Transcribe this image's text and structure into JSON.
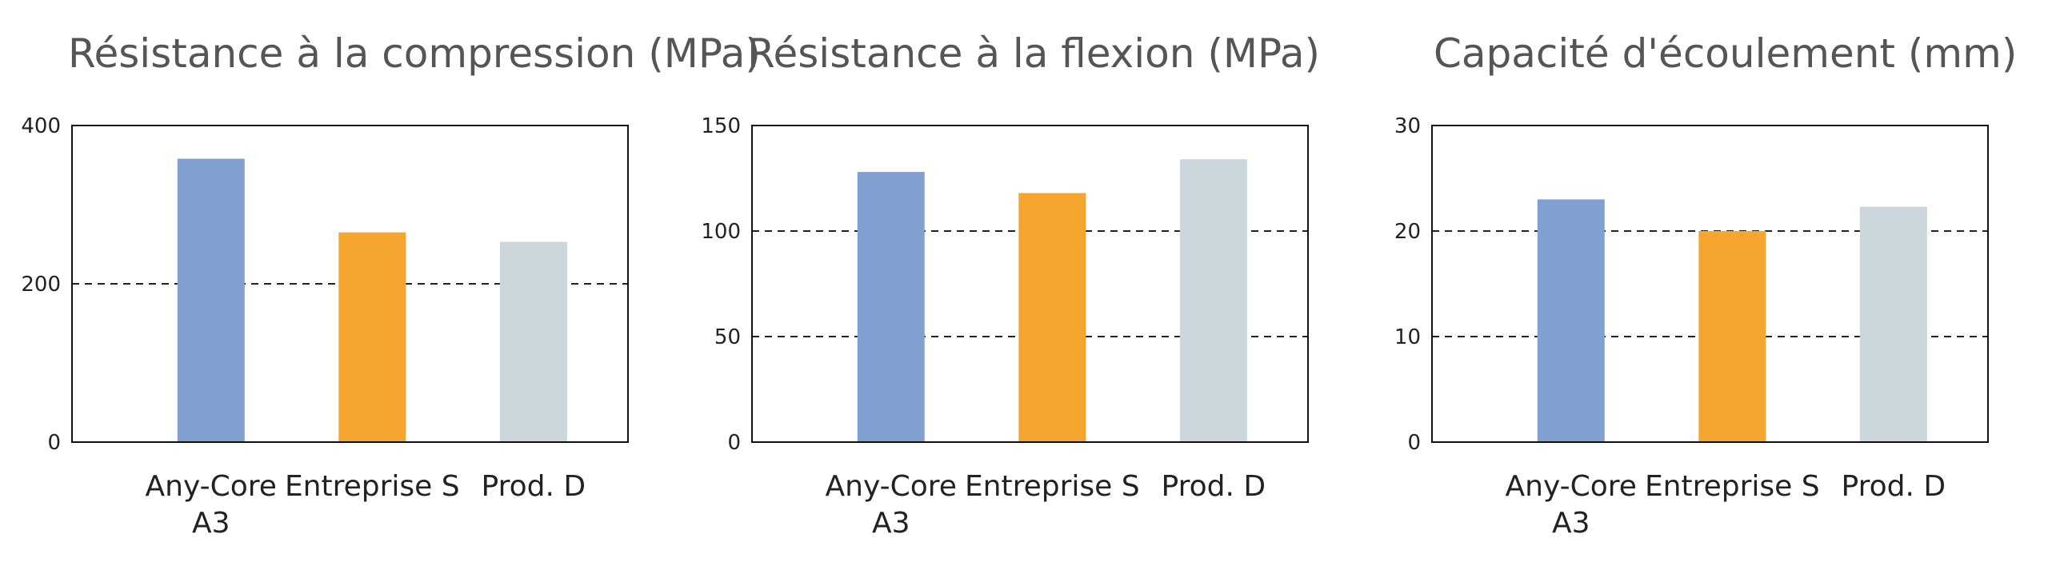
{
  "chart_data": [
    {
      "type": "bar",
      "title": "Résistance à la compression (MPa)",
      "categories": [
        [
          "Any-Core",
          "A3"
        ],
        [
          "Entreprise S"
        ],
        [
          "Prod. D"
        ]
      ],
      "values": [
        358,
        265,
        253
      ],
      "ylim": [
        0,
        400
      ],
      "yticks": [
        0,
        200,
        400
      ],
      "gridlines": [
        200
      ],
      "colors": [
        "#829fd1",
        "#f5a631",
        "#cbd6dd"
      ]
    },
    {
      "type": "bar",
      "title": "Résistance à la flexion (MPa)",
      "categories": [
        [
          "Any-Core",
          "A3"
        ],
        [
          "Entreprise S"
        ],
        [
          "Prod. D"
        ]
      ],
      "values": [
        128,
        118,
        134
      ],
      "ylim": [
        0,
        150
      ],
      "yticks": [
        0,
        50,
        100,
        150
      ],
      "gridlines": [
        50,
        100
      ],
      "colors": [
        "#829fd1",
        "#f5a631",
        "#cbd6dd"
      ]
    },
    {
      "type": "bar",
      "title": "Capacité d'écoulement (mm)",
      "categories": [
        [
          "Any-Core",
          "A3"
        ],
        [
          "Entreprise S"
        ],
        [
          "Prod. D"
        ]
      ],
      "values": [
        23,
        20,
        22.3
      ],
      "ylim": [
        0,
        30
      ],
      "yticks": [
        0,
        10,
        20,
        30
      ],
      "gridlines": [
        10,
        20
      ],
      "colors": [
        "#829fd1",
        "#f5a631",
        "#cbd6dd"
      ]
    }
  ]
}
